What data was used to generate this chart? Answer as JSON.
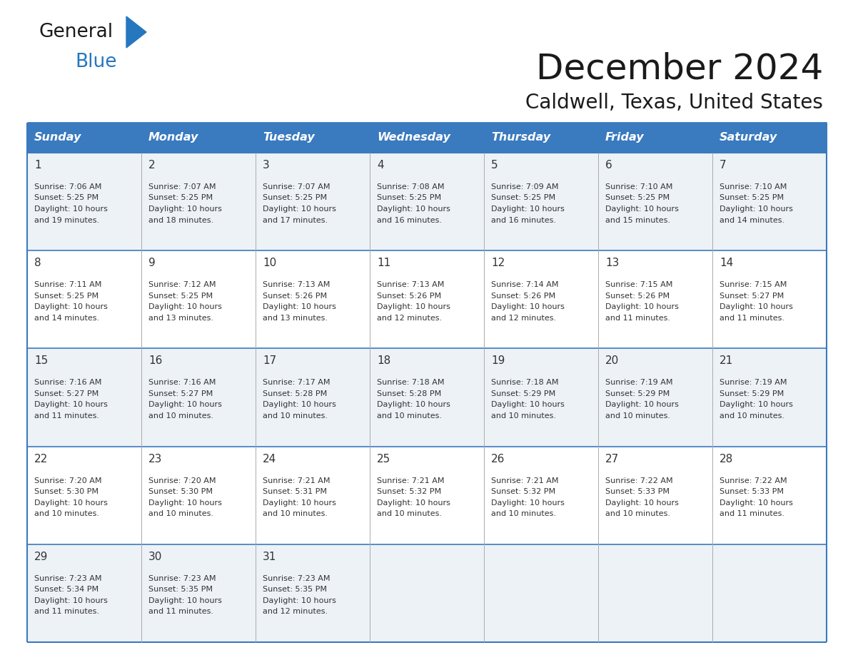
{
  "title": "December 2024",
  "subtitle": "Caldwell, Texas, United States",
  "header_bg": "#3a7abf",
  "header_text_color": "#ffffff",
  "cell_bg_odd": "#edf2f7",
  "cell_bg_even": "#ffffff",
  "border_color": "#3a7abf",
  "grid_color": "#aaaaaa",
  "days_of_week": [
    "Sunday",
    "Monday",
    "Tuesday",
    "Wednesday",
    "Thursday",
    "Friday",
    "Saturday"
  ],
  "calendar_data": {
    "1": {
      "sunrise": "7:06 AM",
      "sunset": "5:25 PM",
      "daylight": "10 hours and 19 minutes."
    },
    "2": {
      "sunrise": "7:07 AM",
      "sunset": "5:25 PM",
      "daylight": "10 hours and 18 minutes."
    },
    "3": {
      "sunrise": "7:07 AM",
      "sunset": "5:25 PM",
      "daylight": "10 hours and 17 minutes."
    },
    "4": {
      "sunrise": "7:08 AM",
      "sunset": "5:25 PM",
      "daylight": "10 hours and 16 minutes."
    },
    "5": {
      "sunrise": "7:09 AM",
      "sunset": "5:25 PM",
      "daylight": "10 hours and 16 minutes."
    },
    "6": {
      "sunrise": "7:10 AM",
      "sunset": "5:25 PM",
      "daylight": "10 hours and 15 minutes."
    },
    "7": {
      "sunrise": "7:10 AM",
      "sunset": "5:25 PM",
      "daylight": "10 hours and 14 minutes."
    },
    "8": {
      "sunrise": "7:11 AM",
      "sunset": "5:25 PM",
      "daylight": "10 hours and 14 minutes."
    },
    "9": {
      "sunrise": "7:12 AM",
      "sunset": "5:25 PM",
      "daylight": "10 hours and 13 minutes."
    },
    "10": {
      "sunrise": "7:13 AM",
      "sunset": "5:26 PM",
      "daylight": "10 hours and 13 minutes."
    },
    "11": {
      "sunrise": "7:13 AM",
      "sunset": "5:26 PM",
      "daylight": "10 hours and 12 minutes."
    },
    "12": {
      "sunrise": "7:14 AM",
      "sunset": "5:26 PM",
      "daylight": "10 hours and 12 minutes."
    },
    "13": {
      "sunrise": "7:15 AM",
      "sunset": "5:26 PM",
      "daylight": "10 hours and 11 minutes."
    },
    "14": {
      "sunrise": "7:15 AM",
      "sunset": "5:27 PM",
      "daylight": "10 hours and 11 minutes."
    },
    "15": {
      "sunrise": "7:16 AM",
      "sunset": "5:27 PM",
      "daylight": "10 hours and 11 minutes."
    },
    "16": {
      "sunrise": "7:16 AM",
      "sunset": "5:27 PM",
      "daylight": "10 hours and 10 minutes."
    },
    "17": {
      "sunrise": "7:17 AM",
      "sunset": "5:28 PM",
      "daylight": "10 hours and 10 minutes."
    },
    "18": {
      "sunrise": "7:18 AM",
      "sunset": "5:28 PM",
      "daylight": "10 hours and 10 minutes."
    },
    "19": {
      "sunrise": "7:18 AM",
      "sunset": "5:29 PM",
      "daylight": "10 hours and 10 minutes."
    },
    "20": {
      "sunrise": "7:19 AM",
      "sunset": "5:29 PM",
      "daylight": "10 hours and 10 minutes."
    },
    "21": {
      "sunrise": "7:19 AM",
      "sunset": "5:29 PM",
      "daylight": "10 hours and 10 minutes."
    },
    "22": {
      "sunrise": "7:20 AM",
      "sunset": "5:30 PM",
      "daylight": "10 hours and 10 minutes."
    },
    "23": {
      "sunrise": "7:20 AM",
      "sunset": "5:30 PM",
      "daylight": "10 hours and 10 minutes."
    },
    "24": {
      "sunrise": "7:21 AM",
      "sunset": "5:31 PM",
      "daylight": "10 hours and 10 minutes."
    },
    "25": {
      "sunrise": "7:21 AM",
      "sunset": "5:32 PM",
      "daylight": "10 hours and 10 minutes."
    },
    "26": {
      "sunrise": "7:21 AM",
      "sunset": "5:32 PM",
      "daylight": "10 hours and 10 minutes."
    },
    "27": {
      "sunrise": "7:22 AM",
      "sunset": "5:33 PM",
      "daylight": "10 hours and 10 minutes."
    },
    "28": {
      "sunrise": "7:22 AM",
      "sunset": "5:33 PM",
      "daylight": "10 hours and 11 minutes."
    },
    "29": {
      "sunrise": "7:23 AM",
      "sunset": "5:34 PM",
      "daylight": "10 hours and 11 minutes."
    },
    "30": {
      "sunrise": "7:23 AM",
      "sunset": "5:35 PM",
      "daylight": "10 hours and 11 minutes."
    },
    "31": {
      "sunrise": "7:23 AM",
      "sunset": "5:35 PM",
      "daylight": "10 hours and 12 minutes."
    }
  },
  "logo_general_color": "#1a1a1a",
  "logo_blue_color": "#2577be",
  "logo_triangle_color": "#2577be",
  "title_color": "#1a1a1a",
  "subtitle_color": "#1a1a1a",
  "day_number_color": "#333333",
  "cell_text_color": "#333333"
}
